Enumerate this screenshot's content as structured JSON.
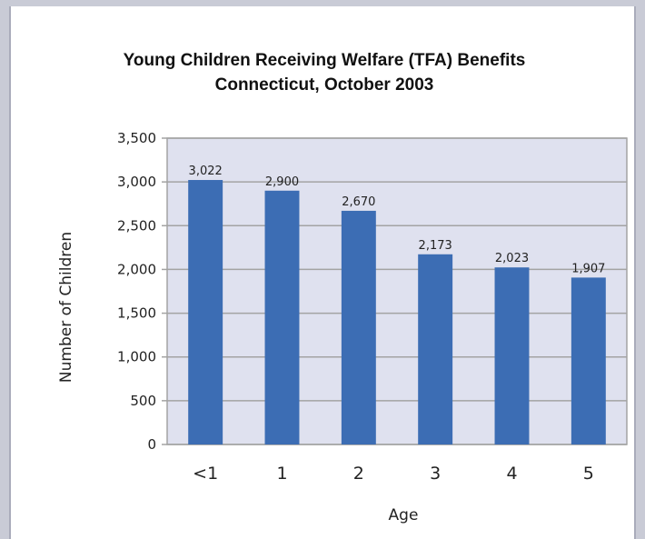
{
  "chart_data": {
    "type": "bar",
    "title": "Young Children Receiving Welfare (TFA) Benefits",
    "subtitle": "Connecticut, October 2003",
    "xlabel": "Age",
    "ylabel": "Number of Children",
    "categories": [
      "<1",
      "1",
      "2",
      "3",
      "4",
      "5"
    ],
    "values": [
      3022,
      2900,
      2670,
      2173,
      2023,
      1907
    ],
    "data_labels": [
      "3,022",
      "2,900",
      "2,670",
      "2,173",
      "2,023",
      "1,907"
    ],
    "yticks": [
      0,
      500,
      1000,
      1500,
      2000,
      2500,
      3000,
      3500
    ],
    "ytick_labels": [
      "0",
      "500",
      "1,000",
      "1,500",
      "2,000",
      "2,500",
      "3,000",
      "3,500"
    ],
    "ylim": [
      0,
      3500
    ],
    "grid": true,
    "legend": "none",
    "colors": {
      "bar": "#3c6db4",
      "plot_background": "#dfe1ef",
      "gridline": "#a3a3a3",
      "frame": "#c9cbd6"
    }
  }
}
